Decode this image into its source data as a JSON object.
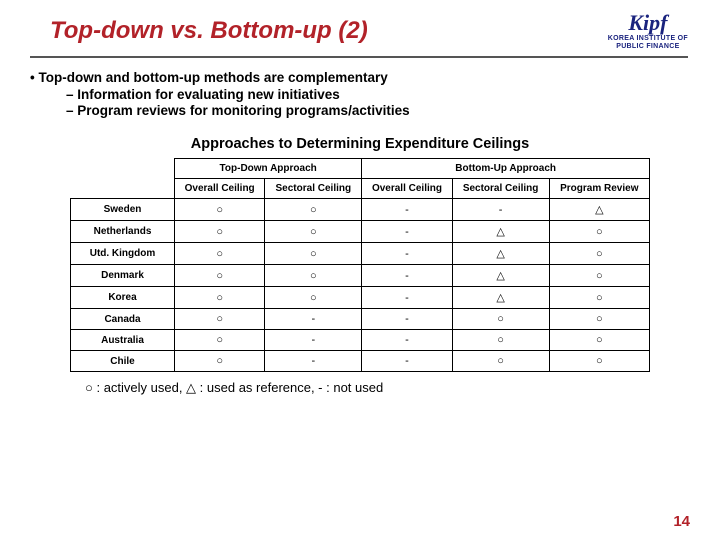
{
  "header": {
    "title": "Top-down vs. Bottom-up (2)",
    "logo_text": "Kipf",
    "logo_sub1": "KOREA INSTITUTE OF",
    "logo_sub2": "PUBLIC  FINANCE"
  },
  "bullets": {
    "main": "• Top-down and bottom-up methods are complementary",
    "sub1": "– Information for evaluating new initiatives",
    "sub2": "– Program reviews for monitoring programs/activities"
  },
  "table": {
    "title": "Approaches to Determining Expenditure Ceilings",
    "group_headers": [
      "Top-Down Approach",
      "Bottom-Up Approach"
    ],
    "col_headers": [
      "Overall Ceiling",
      "Sectoral Ceiling",
      "Overall Ceiling",
      "Sectoral Ceiling",
      "Program Review"
    ],
    "rows": [
      {
        "name": "Sweden",
        "cells": [
          "○",
          "○",
          "-",
          "-",
          "△"
        ]
      },
      {
        "name": "Netherlands",
        "cells": [
          "○",
          "○",
          "-",
          "△",
          "○"
        ]
      },
      {
        "name": "Utd. Kingdom",
        "cells": [
          "○",
          "○",
          "-",
          "△",
          "○"
        ]
      },
      {
        "name": "Denmark",
        "cells": [
          "○",
          "○",
          "-",
          "△",
          "○"
        ]
      },
      {
        "name": "Korea",
        "cells": [
          "○",
          "○",
          "-",
          "△",
          "○"
        ]
      },
      {
        "name": "Canada",
        "cells": [
          "○",
          "-",
          "-",
          "○",
          "○"
        ]
      },
      {
        "name": "Australia",
        "cells": [
          "○",
          "-",
          "-",
          "○",
          "○"
        ]
      },
      {
        "name": "Chile",
        "cells": [
          "○",
          "-",
          "-",
          "○",
          "○"
        ]
      }
    ]
  },
  "legend": "○ : actively used,  △ : used as reference,  - : not used",
  "page_number": "14",
  "colors": {
    "title_color": "#b22229",
    "logo_color": "#1a237e",
    "border_color": "#000000"
  }
}
